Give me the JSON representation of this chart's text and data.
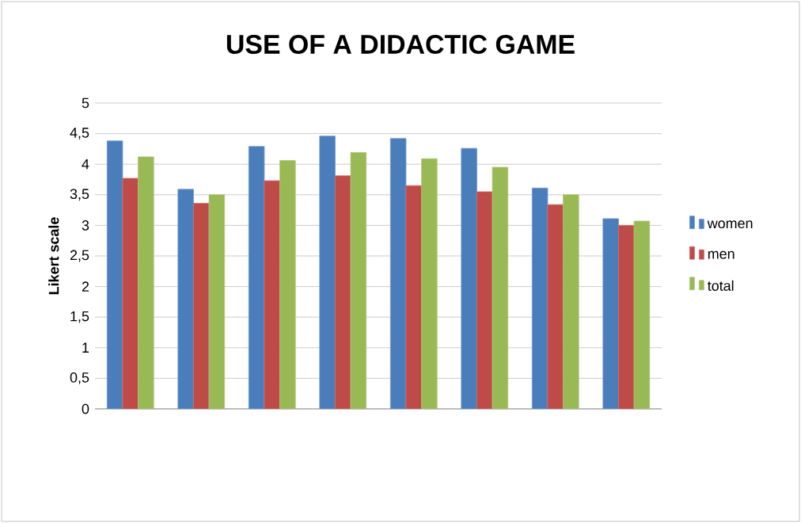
{
  "chart_data": {
    "type": "bar",
    "title": "USE OF A DIDACTIC GAME",
    "ylabel": "Likert scale",
    "categories": [
      null,
      null,
      null,
      null,
      null,
      null,
      null,
      null
    ],
    "series": [
      {
        "name": "women",
        "color": "#4a7ebb",
        "values": [
          4.38,
          3.59,
          4.29,
          4.46,
          4.42,
          4.26,
          3.61,
          3.11
        ]
      },
      {
        "name": "men",
        "color": "#be4b48",
        "values": [
          3.77,
          3.36,
          3.73,
          3.81,
          3.65,
          3.55,
          3.34,
          3.0
        ]
      },
      {
        "name": "total",
        "color": "#98b954",
        "values": [
          4.12,
          3.5,
          4.06,
          4.19,
          4.09,
          3.95,
          3.5,
          3.07
        ]
      }
    ],
    "ylim": [
      0,
      5
    ],
    "yticks": [
      0,
      {
        "value": 0.5,
        "label": "0,5"
      },
      1,
      {
        "value": 1.5,
        "label": "1,5"
      },
      2,
      {
        "value": 2.5,
        "label": "2,5"
      },
      3,
      {
        "value": 3.5,
        "label": "3,5"
      },
      4,
      {
        "value": 4.5,
        "label": "4,5"
      },
      5
    ],
    "grid": "y",
    "legend": "right"
  }
}
